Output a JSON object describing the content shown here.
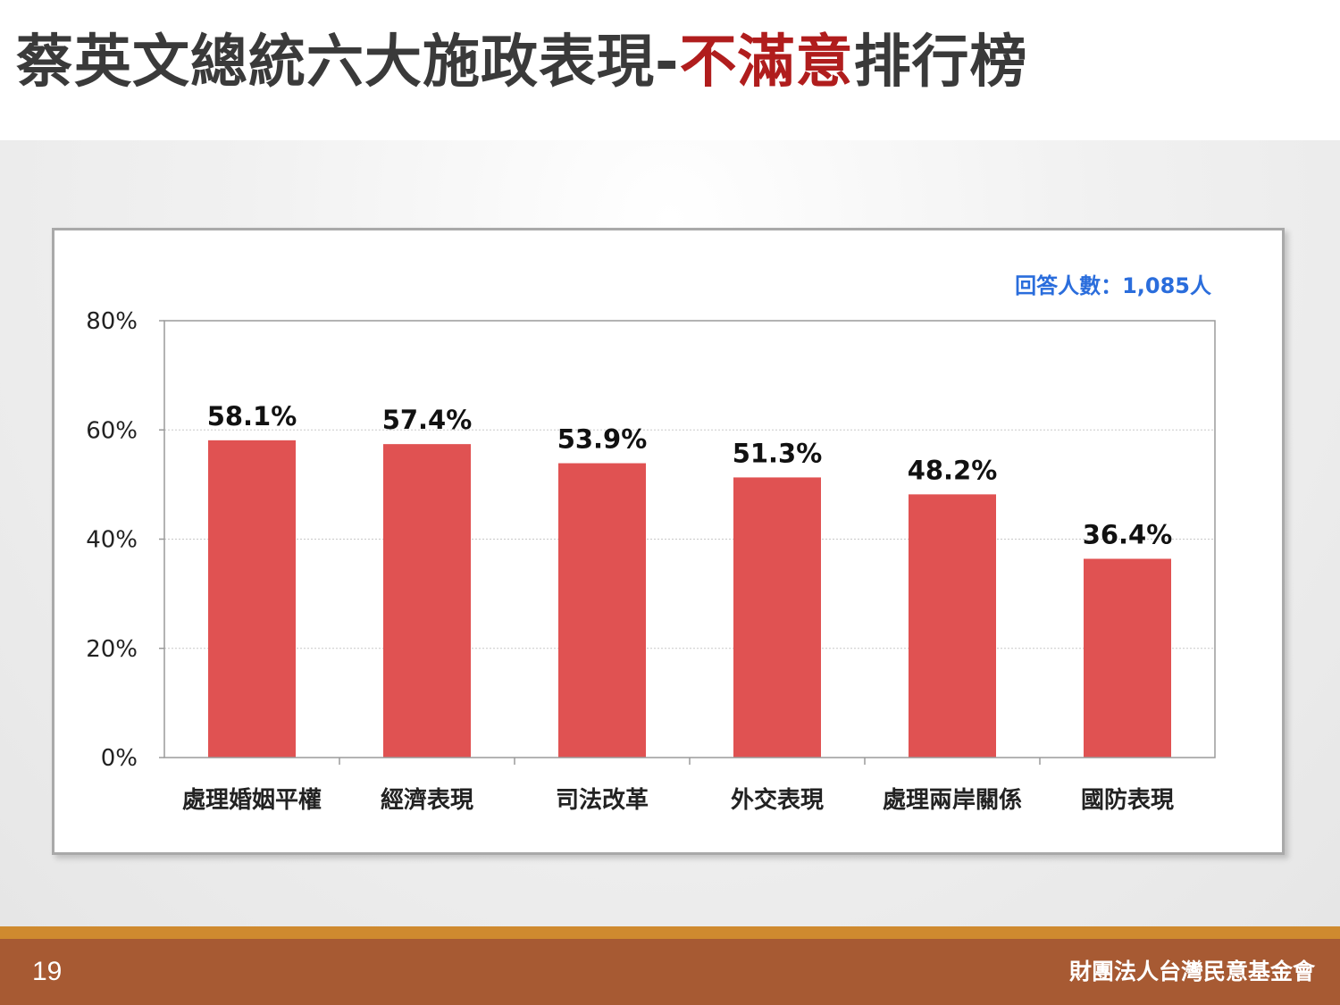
{
  "title": {
    "part1": "蔡英文總統六大施政表現-",
    "highlight": "不滿意",
    "part2": "排行榜"
  },
  "colors": {
    "bar": "#e05252",
    "title_highlight": "#b01d1d",
    "note": "#2a6ddc",
    "footer": "#a75a33",
    "footer_stripe": "#cf8a2f"
  },
  "chart_data": {
    "type": "bar",
    "note": "回答人數：1,085人",
    "categories": [
      "處理婚姻平權",
      "經濟表現",
      "司法改革",
      "外交表現",
      "處理兩岸關係",
      "國防表現"
    ],
    "values": [
      58.1,
      57.4,
      53.9,
      51.3,
      48.2,
      36.4
    ],
    "data_labels": [
      "58.1%",
      "57.4%",
      "53.9%",
      "51.3%",
      "48.2%",
      "36.4%"
    ],
    "yticks": [
      "0%",
      "20%",
      "40%",
      "60%",
      "80%"
    ],
    "ylim": [
      0,
      80
    ],
    "grid": true,
    "xlabel": "",
    "ylabel": ""
  },
  "footer": {
    "page_number": "19",
    "org": "財團法人台灣民意基金會"
  }
}
